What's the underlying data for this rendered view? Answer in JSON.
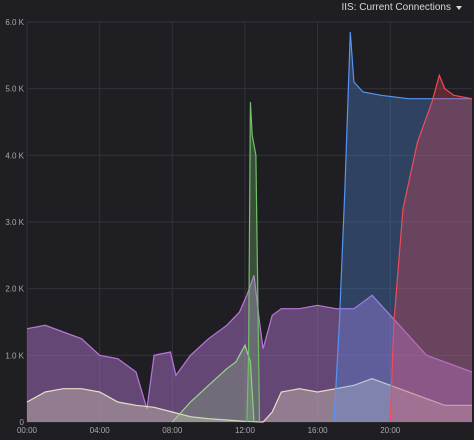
{
  "panel": {
    "title": "IIS: Current Connections"
  },
  "colors": {
    "background": "#1f1f23",
    "grid": "#323238",
    "tick": "#a7a8ab"
  },
  "chart_data": {
    "type": "area",
    "title": "IIS: Current Connections",
    "xlabel": "",
    "ylabel": "",
    "x_ticks": [
      "00:00",
      "04:00",
      "08:00",
      "12:00",
      "16:00",
      "20:00"
    ],
    "x_tick_hours": [
      0,
      4,
      8,
      12,
      16,
      20
    ],
    "xlim_hours": [
      0,
      24.5
    ],
    "y_ticks": [
      "0",
      "1.0 K",
      "2.0 K",
      "3.0 K",
      "4.0 K",
      "5.0 K",
      "6.0 K"
    ],
    "y_tick_values": [
      0,
      1000,
      2000,
      3000,
      4000,
      5000,
      6000
    ],
    "ylim": [
      0,
      6000
    ],
    "grid": true,
    "series": [
      {
        "color": "#b877d9",
        "fill_opacity": 0.45,
        "points": [
          [
            0,
            1400
          ],
          [
            1,
            1450
          ],
          [
            2,
            1350
          ],
          [
            3,
            1250
          ],
          [
            4,
            1000
          ],
          [
            5,
            950
          ],
          [
            6,
            750
          ],
          [
            6.6,
            200
          ],
          [
            7,
            1000
          ],
          [
            7.9,
            1050
          ],
          [
            8.2,
            700
          ],
          [
            9,
            1000
          ],
          [
            10,
            1250
          ],
          [
            11,
            1450
          ],
          [
            11.7,
            1650
          ],
          [
            12.1,
            1900
          ],
          [
            12.5,
            2200
          ],
          [
            12.8,
            1500
          ],
          [
            13,
            1100
          ],
          [
            13.5,
            1600
          ],
          [
            14,
            1700
          ],
          [
            15,
            1700
          ],
          [
            16,
            1750
          ],
          [
            17,
            1700
          ],
          [
            18,
            1700
          ],
          [
            19,
            1900
          ],
          [
            20,
            1600
          ],
          [
            21,
            1300
          ],
          [
            22,
            1000
          ],
          [
            23,
            900
          ],
          [
            24.5,
            750
          ]
        ]
      },
      {
        "color": "#e5e0c3",
        "fill_opacity": 0.35,
        "points": [
          [
            0,
            300
          ],
          [
            1,
            450
          ],
          [
            2,
            500
          ],
          [
            3,
            500
          ],
          [
            4,
            450
          ],
          [
            5,
            300
          ],
          [
            6,
            250
          ],
          [
            7,
            220
          ],
          [
            8,
            150
          ],
          [
            9,
            80
          ],
          [
            10,
            50
          ],
          [
            11,
            30
          ],
          [
            12,
            10
          ],
          [
            13,
            0
          ],
          [
            13.5,
            150
          ],
          [
            14,
            450
          ],
          [
            15,
            500
          ],
          [
            16,
            450
          ],
          [
            17,
            500
          ],
          [
            18,
            550
          ],
          [
            19,
            650
          ],
          [
            20,
            550
          ],
          [
            21,
            450
          ],
          [
            22,
            350
          ],
          [
            23,
            250
          ],
          [
            24.5,
            250
          ]
        ]
      },
      {
        "color": "#96d98d",
        "fill_opacity": 0.25,
        "points": [
          [
            8,
            0
          ],
          [
            9,
            300
          ],
          [
            10,
            550
          ],
          [
            11,
            800
          ],
          [
            11.5,
            900
          ],
          [
            11.9,
            1100
          ],
          [
            12,
            1150
          ],
          [
            12.3,
            900
          ],
          [
            12.5,
            0
          ]
        ]
      },
      {
        "color": "#73bf69",
        "fill_opacity": 0.3,
        "points": [
          [
            12.1,
            0
          ],
          [
            12.2,
            1000
          ],
          [
            12.3,
            4800
          ],
          [
            12.4,
            4300
          ],
          [
            12.6,
            4000
          ],
          [
            12.8,
            0
          ]
        ]
      },
      {
        "color": "#5794f2",
        "fill_opacity": 0.3,
        "points": [
          [
            16.9,
            0
          ],
          [
            17.2,
            1500
          ],
          [
            17.5,
            3500
          ],
          [
            17.8,
            5850
          ],
          [
            18,
            5100
          ],
          [
            18.5,
            4950
          ],
          [
            19.5,
            4900
          ],
          [
            21,
            4850
          ],
          [
            22.5,
            4850
          ],
          [
            24.5,
            4850
          ]
        ]
      },
      {
        "color": "#f2495c",
        "fill_opacity": 0.3,
        "points": [
          [
            20,
            0
          ],
          [
            20.2,
            1500
          ],
          [
            20.7,
            3200
          ],
          [
            21.5,
            4200
          ],
          [
            22.3,
            4800
          ],
          [
            22.7,
            5200
          ],
          [
            23,
            5000
          ],
          [
            23.5,
            4900
          ],
          [
            24.5,
            4850
          ]
        ]
      }
    ]
  }
}
